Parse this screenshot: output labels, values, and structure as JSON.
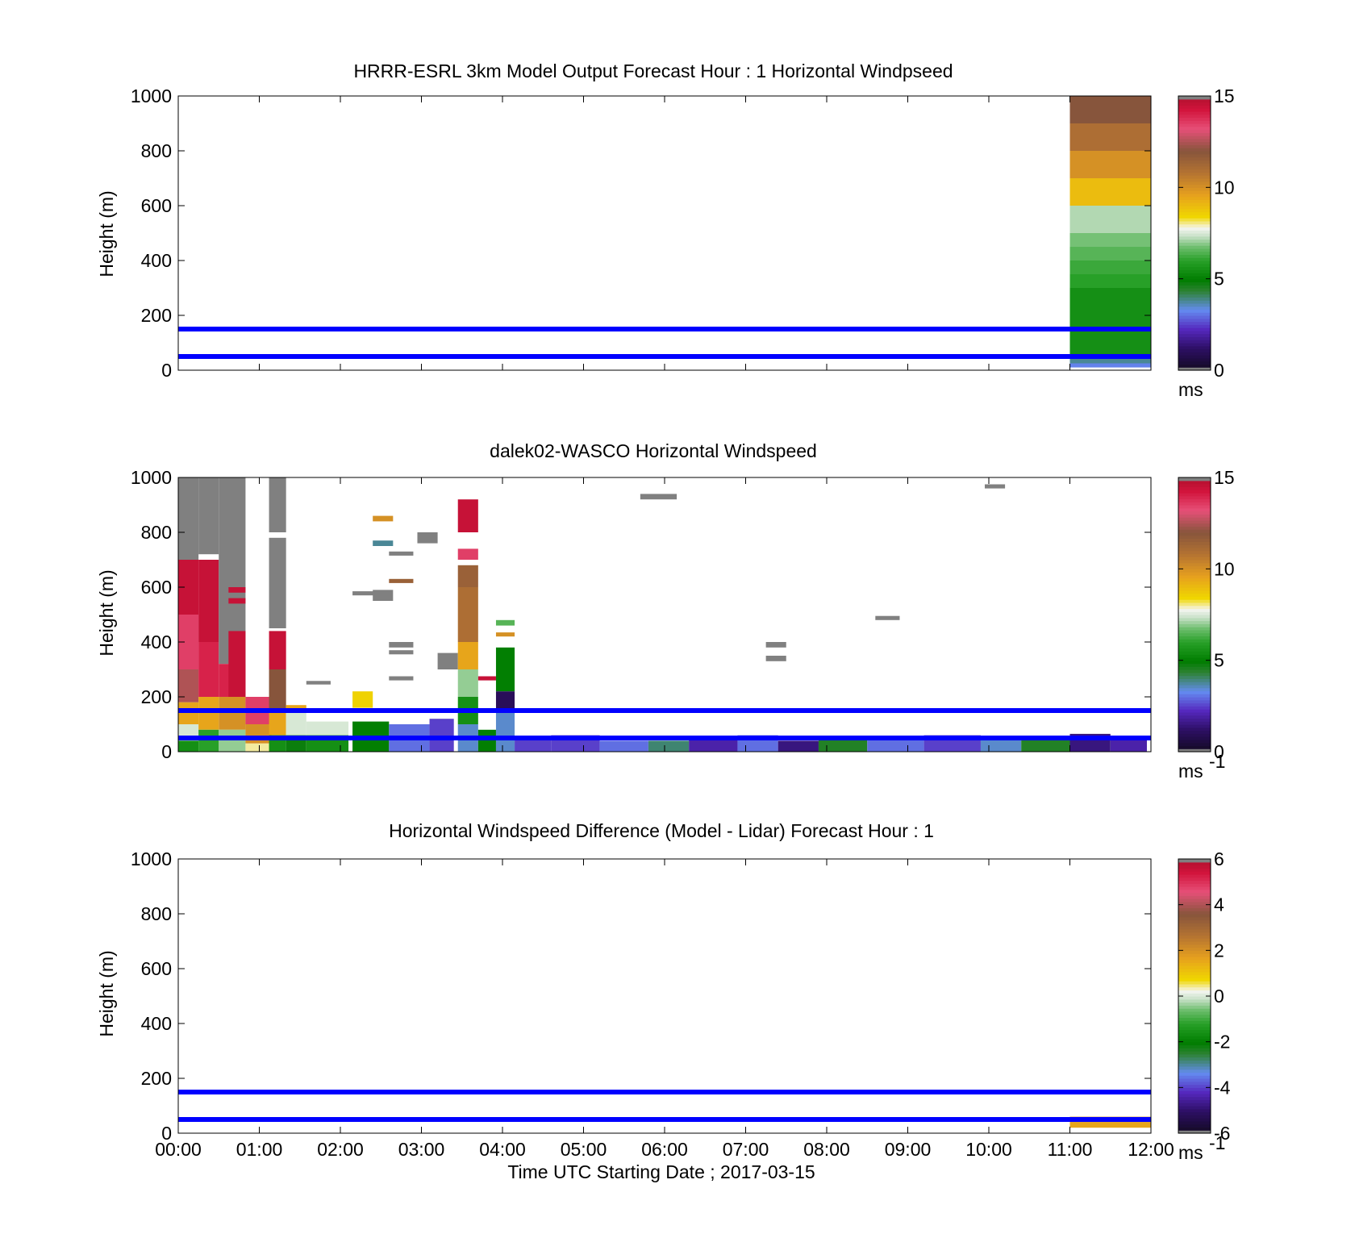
{
  "figure": {
    "xlabel": "Time UTC  Starting Date ; 2017-03-15",
    "x_ticks": [
      "00:00",
      "01:00",
      "02:00",
      "03:00",
      "04:00",
      "05:00",
      "06:00",
      "07:00",
      "08:00",
      "09:00",
      "10:00",
      "11:00",
      "12:00"
    ],
    "reference_heights_m": [
      150,
      50
    ],
    "reference_line_color": "#0000ff"
  },
  "chart_data": [
    {
      "type": "heatmap",
      "title": "HRRR-ESRL 3km Model Output   Forecast Hour : 1 Horizontal Windpseed",
      "ylabel": "Height (m)",
      "ylim": [
        0,
        1000
      ],
      "y_ticks": [
        "0",
        "200",
        "400",
        "600",
        "800",
        "1000"
      ],
      "xlim_hours": [
        0,
        12
      ],
      "colorbar": {
        "clim": [
          0,
          15
        ],
        "ticks": [
          "0",
          "5",
          "10",
          "15"
        ],
        "unit_label": "ms",
        "unit_sup": ""
      },
      "cells": [
        {
          "t0": 11,
          "t1": 12,
          "h0": 900,
          "h1": 1000,
          "v": 12.0
        },
        {
          "t0": 11,
          "t1": 12,
          "h0": 800,
          "h1": 900,
          "v": 11.0
        },
        {
          "t0": 11,
          "t1": 12,
          "h0": 700,
          "h1": 800,
          "v": 10.0
        },
        {
          "t0": 11,
          "t1": 12,
          "h0": 600,
          "h1": 700,
          "v": 9.0
        },
        {
          "t0": 11,
          "t1": 12,
          "h0": 500,
          "h1": 600,
          "v": 7.2
        },
        {
          "t0": 11,
          "t1": 12,
          "h0": 450,
          "h1": 500,
          "v": 6.8
        },
        {
          "t0": 11,
          "t1": 12,
          "h0": 400,
          "h1": 450,
          "v": 6.5
        },
        {
          "t0": 11,
          "t1": 12,
          "h0": 350,
          "h1": 400,
          "v": 6.2
        },
        {
          "t0": 11,
          "t1": 12,
          "h0": 300,
          "h1": 350,
          "v": 6.0
        },
        {
          "t0": 11,
          "t1": 12,
          "h0": 50,
          "h1": 300,
          "v": 5.5
        },
        {
          "t0": 11,
          "t1": 12,
          "h0": 25,
          "h1": 50,
          "v": 3.8
        },
        {
          "t0": 11,
          "t1": 12,
          "h0": 10,
          "h1": 25,
          "v": 3.2
        }
      ]
    },
    {
      "type": "heatmap",
      "title": "dalek02-WASCO  Horizontal Windspeed",
      "ylabel": "Height (m)",
      "ylim": [
        0,
        1000
      ],
      "y_ticks": [
        "0",
        "200",
        "400",
        "600",
        "800",
        "1000"
      ],
      "xlim_hours": [
        0,
        12
      ],
      "colorbar": {
        "clim": [
          0,
          15
        ],
        "ticks": [
          "0",
          "5",
          "10",
          "15"
        ],
        "unit_label": "ms",
        "unit_sup": "-1"
      },
      "cells": [
        {
          "t0": 0.0,
          "t1": 0.25,
          "h0": 700,
          "h1": 1000,
          "v": 16
        },
        {
          "t0": 0.0,
          "t1": 0.25,
          "h0": 500,
          "h1": 700,
          "v": 14.5
        },
        {
          "t0": 0.0,
          "t1": 0.25,
          "h0": 300,
          "h1": 500,
          "v": 13.5
        },
        {
          "t0": 0.0,
          "t1": 0.25,
          "h0": 180,
          "h1": 300,
          "v": 12.5
        },
        {
          "t0": 0.0,
          "t1": 0.25,
          "h0": 100,
          "h1": 180,
          "v": 9.5
        },
        {
          "t0": 0.0,
          "t1": 0.25,
          "h0": 40,
          "h1": 100,
          "v": 7.5
        },
        {
          "t0": 0.0,
          "t1": 0.25,
          "h0": 0,
          "h1": 40,
          "v": 5.5
        },
        {
          "t0": 0.25,
          "t1": 0.5,
          "h0": 720,
          "h1": 1000,
          "v": 16
        },
        {
          "t0": 0.25,
          "t1": 0.5,
          "h0": 400,
          "h1": 700,
          "v": 14.5
        },
        {
          "t0": 0.25,
          "t1": 0.5,
          "h0": 200,
          "h1": 400,
          "v": 14
        },
        {
          "t0": 0.25,
          "t1": 0.5,
          "h0": 80,
          "h1": 200,
          "v": 9.5
        },
        {
          "t0": 0.25,
          "t1": 0.5,
          "h0": 0,
          "h1": 80,
          "v": 6
        },
        {
          "t0": 0.5,
          "t1": 0.83,
          "h0": 320,
          "h1": 1000,
          "v": 16
        },
        {
          "t0": 0.5,
          "t1": 0.83,
          "h0": 200,
          "h1": 320,
          "v": 14
        },
        {
          "t0": 0.5,
          "t1": 0.83,
          "h0": 80,
          "h1": 200,
          "v": 10
        },
        {
          "t0": 0.5,
          "t1": 0.83,
          "h0": 0,
          "h1": 80,
          "v": 7
        },
        {
          "t0": 0.62,
          "t1": 0.83,
          "h0": 580,
          "h1": 600,
          "v": 14.5
        },
        {
          "t0": 0.62,
          "t1": 0.83,
          "h0": 540,
          "h1": 560,
          "v": 14.5
        },
        {
          "t0": 0.62,
          "t1": 0.83,
          "h0": 200,
          "h1": 440,
          "v": 14.5
        },
        {
          "t0": 0.83,
          "t1": 1.15,
          "h0": 100,
          "h1": 200,
          "v": 13.5
        },
        {
          "t0": 0.83,
          "t1": 1.15,
          "h0": 30,
          "h1": 100,
          "v": 10
        },
        {
          "t0": 0.83,
          "t1": 1.15,
          "h0": 0,
          "h1": 30,
          "v": 8
        },
        {
          "t0": 1.12,
          "t1": 1.33,
          "h0": 800,
          "h1": 1000,
          "v": 16
        },
        {
          "t0": 1.12,
          "t1": 1.33,
          "h0": 450,
          "h1": 780,
          "v": 16
        },
        {
          "t0": 1.12,
          "t1": 1.33,
          "h0": 300,
          "h1": 440,
          "v": 14.5
        },
        {
          "t0": 1.12,
          "t1": 1.33,
          "h0": 150,
          "h1": 300,
          "v": 12
        },
        {
          "t0": 1.12,
          "t1": 1.33,
          "h0": 60,
          "h1": 150,
          "v": 9.5
        },
        {
          "t0": 1.12,
          "t1": 1.33,
          "h0": 0,
          "h1": 60,
          "v": 5.5
        },
        {
          "t0": 1.33,
          "t1": 1.58,
          "h0": 150,
          "h1": 170,
          "v": 9.5
        },
        {
          "t0": 1.33,
          "t1": 1.58,
          "h0": 60,
          "h1": 150,
          "v": 7.5
        },
        {
          "t0": 1.33,
          "t1": 1.58,
          "h0": 0,
          "h1": 60,
          "v": 4.8
        },
        {
          "t0": 1.58,
          "t1": 2.1,
          "h0": 60,
          "h1": 110,
          "v": 7.5
        },
        {
          "t0": 1.58,
          "t1": 2.1,
          "h0": 0,
          "h1": 60,
          "v": 5.5
        },
        {
          "t0": 1.58,
          "t1": 1.88,
          "h0": 245,
          "h1": 258,
          "v": 16
        },
        {
          "t0": 2.15,
          "t1": 2.4,
          "h0": 160,
          "h1": 220,
          "v": 8.5
        },
        {
          "t0": 2.15,
          "t1": 2.6,
          "h0": 0,
          "h1": 110,
          "v": 5
        },
        {
          "t0": 2.15,
          "t1": 2.45,
          "h0": 570,
          "h1": 585,
          "v": 16
        },
        {
          "t0": 2.4,
          "t1": 2.65,
          "h0": 840,
          "h1": 860,
          "v": 10
        },
        {
          "t0": 2.4,
          "t1": 2.65,
          "h0": 750,
          "h1": 770,
          "v": 3.8
        },
        {
          "t0": 2.4,
          "t1": 2.65,
          "h0": 550,
          "h1": 590,
          "v": 16
        },
        {
          "t0": 2.6,
          "t1": 2.9,
          "h0": 715,
          "h1": 730,
          "v": 16
        },
        {
          "t0": 2.6,
          "t1": 2.9,
          "h0": 615,
          "h1": 630,
          "v": 11.5
        },
        {
          "t0": 2.6,
          "t1": 2.9,
          "h0": 380,
          "h1": 400,
          "v": 16
        },
        {
          "t0": 2.6,
          "t1": 2.9,
          "h0": 355,
          "h1": 370,
          "v": 16
        },
        {
          "t0": 2.6,
          "t1": 2.9,
          "h0": 260,
          "h1": 275,
          "v": 16
        },
        {
          "t0": 2.6,
          "t1": 3.1,
          "h0": 0,
          "h1": 100,
          "v": 3
        },
        {
          "t0": 2.95,
          "t1": 3.2,
          "h0": 760,
          "h1": 800,
          "v": 16
        },
        {
          "t0": 3.1,
          "t1": 3.4,
          "h0": 0,
          "h1": 120,
          "v": 2.5
        },
        {
          "t0": 3.2,
          "t1": 3.45,
          "h0": 300,
          "h1": 360,
          "v": 16
        },
        {
          "t0": 3.45,
          "t1": 3.7,
          "h0": 600,
          "h1": 680,
          "v": 11.5
        },
        {
          "t0": 3.45,
          "t1": 3.7,
          "h0": 400,
          "h1": 600,
          "v": 11
        },
        {
          "t0": 3.45,
          "t1": 3.7,
          "h0": 300,
          "h1": 400,
          "v": 9.5
        },
        {
          "t0": 3.45,
          "t1": 3.7,
          "h0": 200,
          "h1": 300,
          "v": 7
        },
        {
          "t0": 3.45,
          "t1": 3.7,
          "h0": 100,
          "h1": 200,
          "v": 5.5
        },
        {
          "t0": 3.45,
          "t1": 3.7,
          "h0": 0,
          "h1": 100,
          "v": 3.5
        },
        {
          "t0": 3.45,
          "t1": 3.7,
          "h0": 800,
          "h1": 920,
          "v": 14.5
        },
        {
          "t0": 3.45,
          "t1": 3.7,
          "h0": 700,
          "h1": 740,
          "v": 13.5
        },
        {
          "t0": 3.7,
          "t1": 3.92,
          "h0": 260,
          "h1": 275,
          "v": 14.5
        },
        {
          "t0": 3.7,
          "t1": 3.92,
          "h0": 0,
          "h1": 80,
          "v": 5
        },
        {
          "t0": 3.92,
          "t1": 4.15,
          "h0": 460,
          "h1": 480,
          "v": 6.5
        },
        {
          "t0": 3.92,
          "t1": 4.15,
          "h0": 420,
          "h1": 435,
          "v": 10
        },
        {
          "t0": 3.92,
          "t1": 4.15,
          "h0": 220,
          "h1": 380,
          "v": 5
        },
        {
          "t0": 3.92,
          "t1": 4.15,
          "h0": 150,
          "h1": 220,
          "v": 1
        },
        {
          "t0": 3.92,
          "t1": 4.15,
          "h0": 0,
          "h1": 150,
          "v": 3.5
        },
        {
          "t0": 4.15,
          "t1": 4.6,
          "h0": 0,
          "h1": 50,
          "v": 2.5
        },
        {
          "t0": 4.6,
          "t1": 5.2,
          "h0": 0,
          "h1": 60,
          "v": 2.5
        },
        {
          "t0": 5.2,
          "t1": 5.8,
          "h0": 0,
          "h1": 40,
          "v": 3
        },
        {
          "t0": 5.8,
          "t1": 6.3,
          "h0": 0,
          "h1": 40,
          "v": 4
        },
        {
          "t0": 5.7,
          "t1": 6.15,
          "h0": 920,
          "h1": 940,
          "v": 16
        },
        {
          "t0": 6.3,
          "t1": 6.9,
          "h0": 0,
          "h1": 45,
          "v": 2
        },
        {
          "t0": 6.9,
          "t1": 7.4,
          "h0": 0,
          "h1": 60,
          "v": 3
        },
        {
          "t0": 7.4,
          "t1": 7.9,
          "h0": 0,
          "h1": 40,
          "v": 1.5
        },
        {
          "t0": 7.25,
          "t1": 7.5,
          "h0": 380,
          "h1": 400,
          "v": 16
        },
        {
          "t0": 7.25,
          "t1": 7.5,
          "h0": 330,
          "h1": 350,
          "v": 16
        },
        {
          "t0": 7.9,
          "t1": 8.5,
          "h0": 0,
          "h1": 50,
          "v": 4.5
        },
        {
          "t0": 8.5,
          "t1": 9.2,
          "h0": 0,
          "h1": 50,
          "v": 3
        },
        {
          "t0": 8.6,
          "t1": 8.9,
          "h0": 480,
          "h1": 495,
          "v": 16
        },
        {
          "t0": 9.2,
          "t1": 9.9,
          "h0": 0,
          "h1": 60,
          "v": 2.5
        },
        {
          "t0": 9.9,
          "t1": 10.4,
          "h0": 0,
          "h1": 50,
          "v": 3.5
        },
        {
          "t0": 9.95,
          "t1": 10.2,
          "h0": 960,
          "h1": 975,
          "v": 16
        },
        {
          "t0": 10.4,
          "t1": 11.0,
          "h0": 0,
          "h1": 55,
          "v": 4.5
        },
        {
          "t0": 11.0,
          "t1": 11.5,
          "h0": 0,
          "h1": 65,
          "v": 1.5
        },
        {
          "t0": 11.5,
          "t1": 11.95,
          "h0": 0,
          "h1": 45,
          "v": 2
        }
      ]
    },
    {
      "type": "heatmap",
      "title": "Horizontal Windspeed Difference (Model - Lidar) Forecast Hour : 1",
      "ylabel": "Height (m)",
      "ylim": [
        0,
        1000
      ],
      "y_ticks": [
        "0",
        "200",
        "400",
        "600",
        "800",
        "1000"
      ],
      "xlim_hours": [
        0,
        12
      ],
      "colorbar": {
        "clim": [
          -6,
          6
        ],
        "ticks": [
          "-6",
          "-4",
          "-2",
          "0",
          "2",
          "4",
          "6"
        ],
        "unit_label": "ms",
        "unit_sup": "-1"
      },
      "cells": [
        {
          "t0": 11,
          "t1": 12,
          "h0": 40,
          "h1": 60,
          "v": 2.2
        },
        {
          "t0": 11,
          "t1": 12,
          "h0": 20,
          "h1": 40,
          "v": 1.6
        }
      ]
    }
  ]
}
